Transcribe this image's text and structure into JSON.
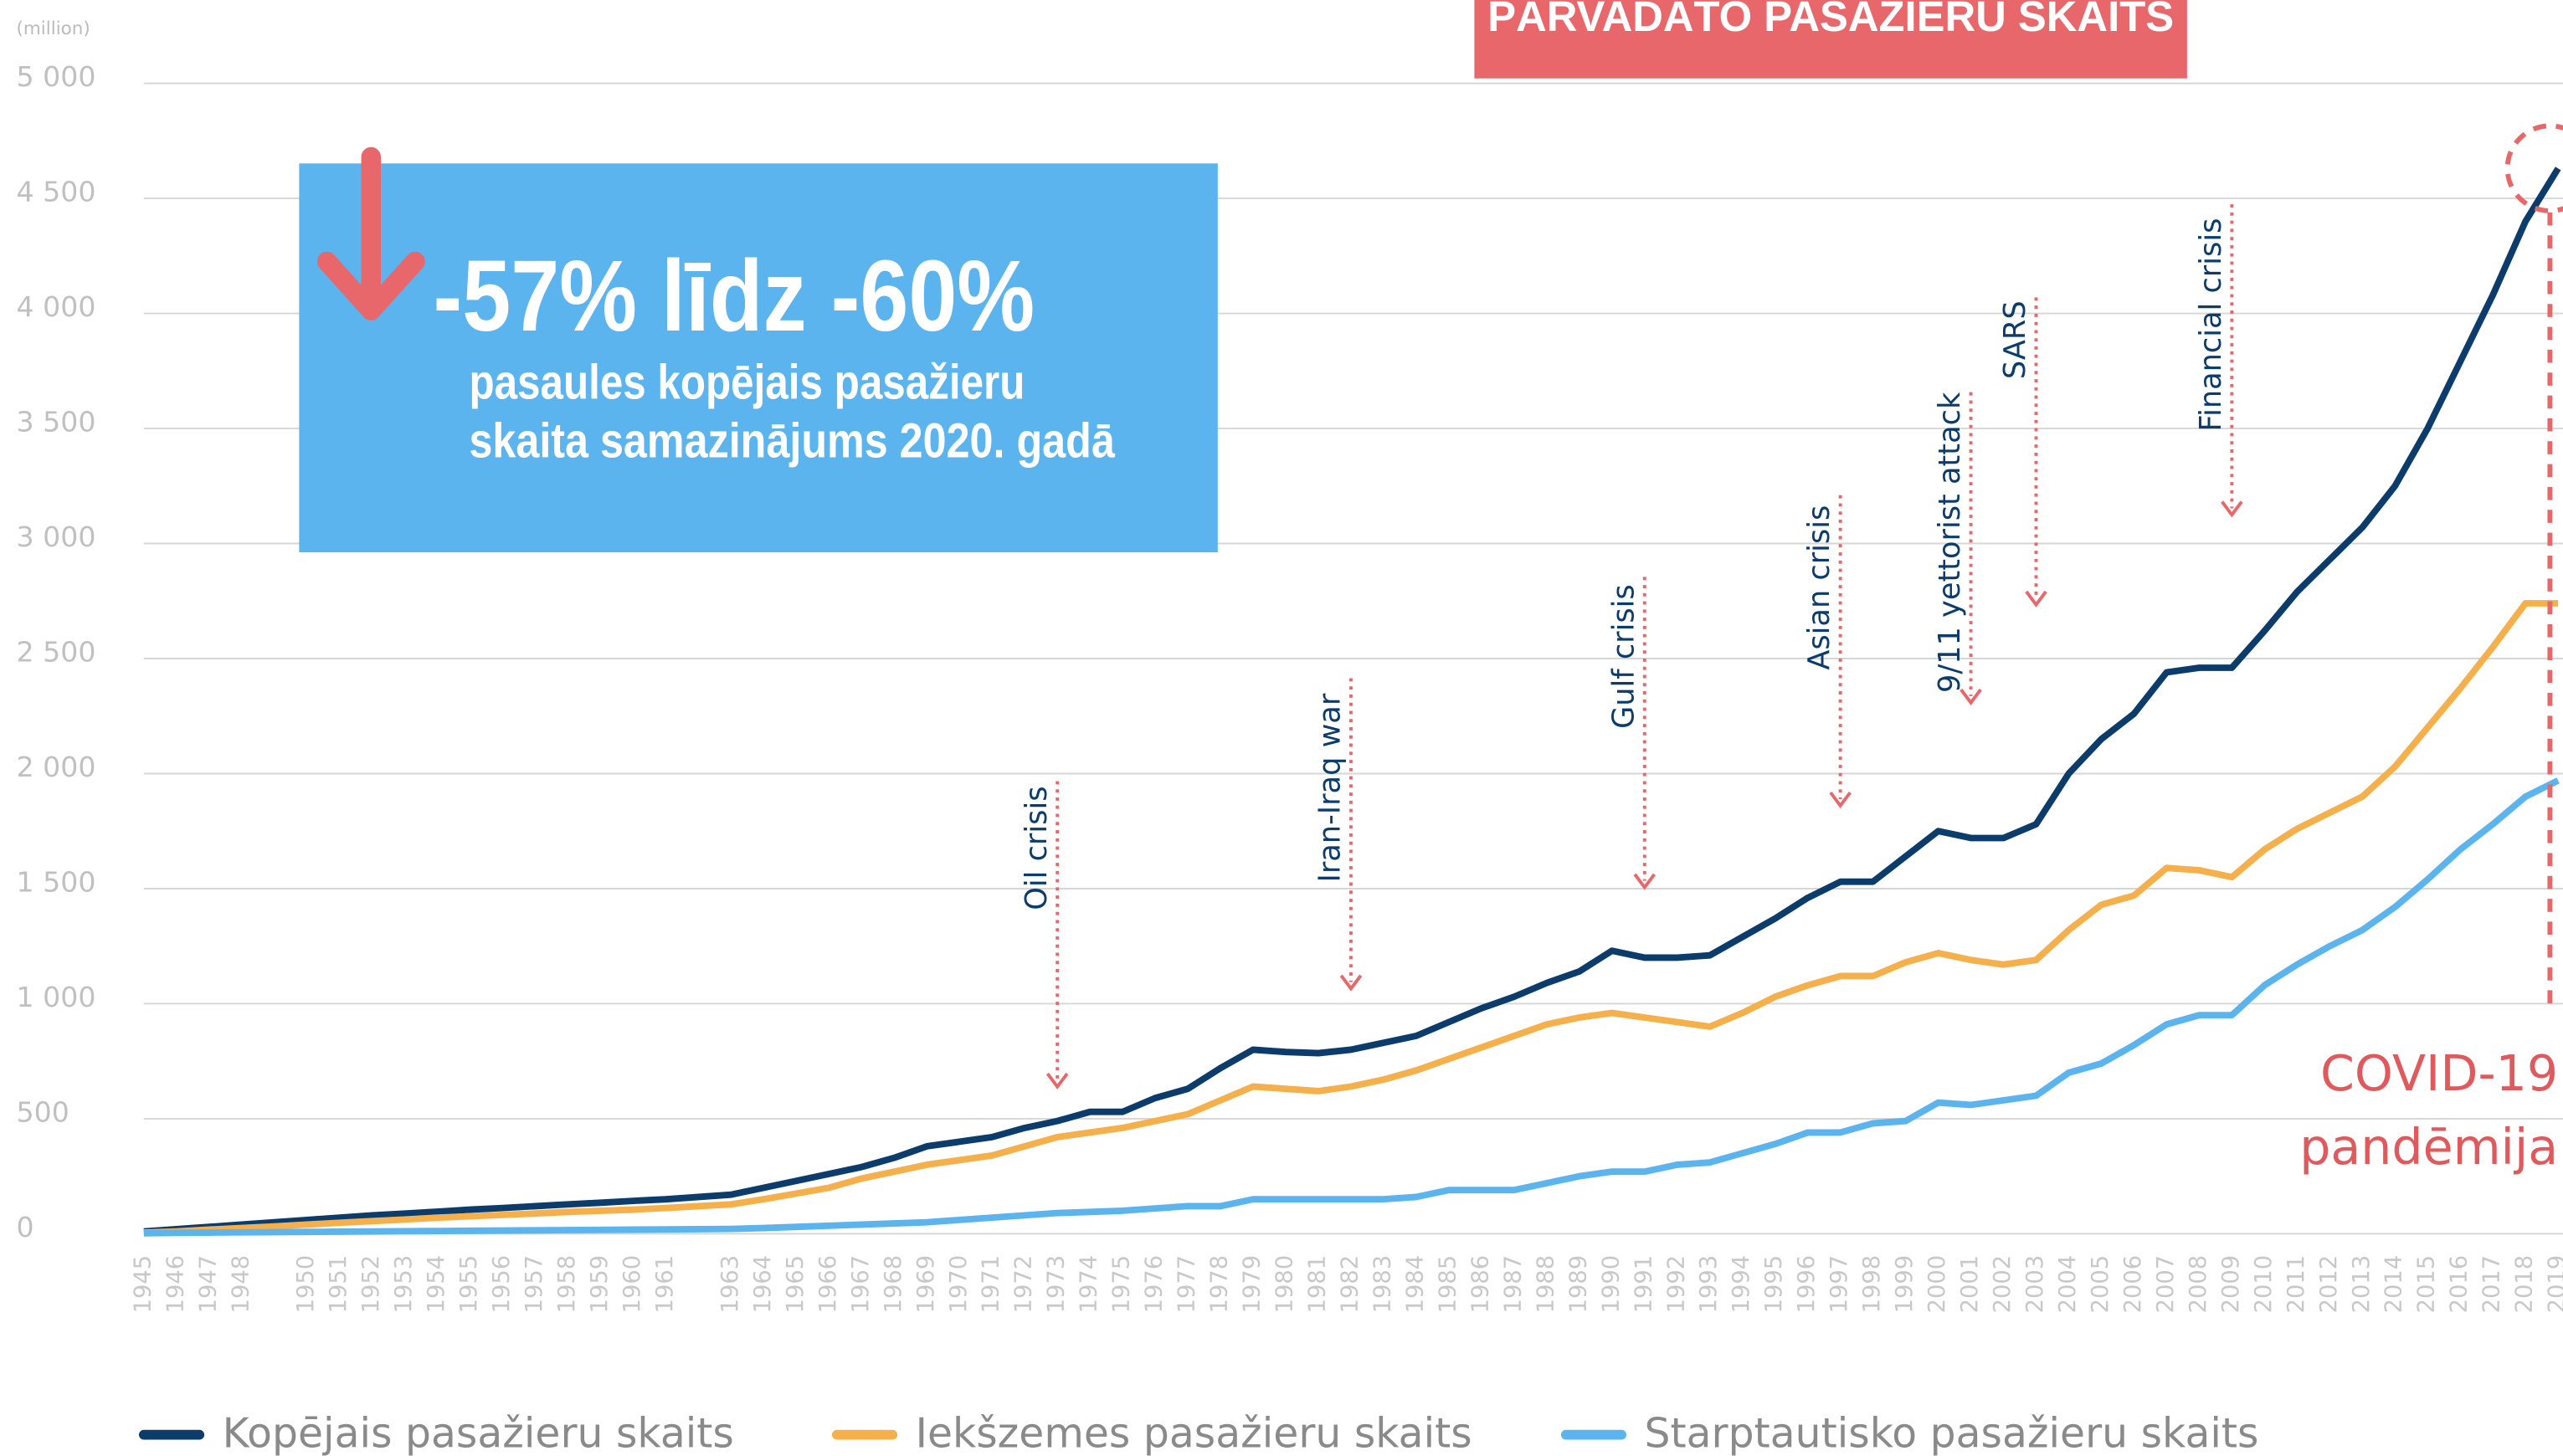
{
  "chart_data": {
    "type": "line",
    "title": "PĀRVADĀTO PASAŽIERU SKAITS",
    "y_unit_label": "(million)",
    "callout": {
      "headline": "-57% līdz -60%",
      "line1": "pasaules kopējais pasažieru",
      "line2": "skaita samazinājums 2020. gadā"
    },
    "categories": [
      "1945",
      "1946",
      "1947",
      "1948",
      null,
      "1950",
      "1951",
      "1952",
      "1953",
      "1954",
      "1955",
      "1956",
      "1957",
      "1958",
      "1959",
      "1960",
      "1961",
      null,
      "1963",
      "1964",
      "1965",
      "1966",
      "1967",
      "1968",
      "1969",
      "1970",
      "1971",
      "1972",
      "1973",
      "1974",
      "1975",
      "1976",
      "1977",
      "1978",
      "1979",
      "1980",
      "1981",
      "1982",
      "1983",
      "1984",
      "1985",
      "1986",
      "1987",
      "1988",
      "1989",
      "1990",
      "1991",
      "1992",
      "1993",
      "1994",
      "1995",
      "1996",
      "1997",
      "1998",
      "1999",
      "2000",
      "2001",
      "2002",
      "2003",
      "2004",
      "2005",
      "2006",
      "2007",
      "2008",
      "2009",
      "2010",
      "2011",
      "2012",
      "2013",
      "2014",
      "2015",
      "2016",
      "2017",
      "2018",
      "2019"
    ],
    "series": [
      {
        "name": "Kopējais pasažieru skaits",
        "color": "#0b3c6b",
        "values": [
          10,
          20,
          30,
          40,
          50,
          60,
          70,
          80,
          88,
          96,
          105,
          112,
          120,
          128,
          135,
          143,
          150,
          160,
          170,
          200,
          230,
          260,
          290,
          330,
          380,
          400,
          420,
          460,
          490,
          530,
          530,
          590,
          630,
          720,
          800,
          790,
          785,
          800,
          830,
          860,
          920,
          980,
          1030,
          1090,
          1140,
          1230,
          1200,
          1200,
          1210,
          1290,
          1370,
          1460,
          1530,
          1530,
          1640,
          1750,
          1720,
          1720,
          1780,
          2000,
          2150,
          2260,
          2440,
          2460,
          2460,
          2620,
          2790,
          2930,
          3070,
          3250,
          3500,
          3790,
          4080,
          4400,
          4630
        ]
      },
      {
        "name": "Iekšzemes pasažieru skaits",
        "color": "#f5b04b",
        "values": [
          5,
          10,
          18,
          25,
          32,
          40,
          48,
          55,
          62,
          70,
          76,
          82,
          88,
          95,
          100,
          105,
          112,
          120,
          128,
          150,
          175,
          200,
          240,
          270,
          300,
          320,
          340,
          380,
          420,
          440,
          460,
          490,
          520,
          580,
          640,
          630,
          620,
          640,
          670,
          710,
          760,
          810,
          860,
          910,
          940,
          960,
          940,
          920,
          900,
          960,
          1030,
          1080,
          1120,
          1120,
          1180,
          1220,
          1190,
          1170,
          1190,
          1320,
          1430,
          1470,
          1590,
          1580,
          1550,
          1670,
          1760,
          1830,
          1900,
          2030,
          2200,
          2370,
          2550,
          2740,
          2740
        ]
      },
      {
        "name": "Starptautisko pasažieru skaits",
        "color": "#5bb4ee",
        "values": [
          2,
          4,
          5,
          6,
          7,
          8,
          9,
          10,
          11,
          12,
          13,
          14,
          15,
          16,
          17,
          18,
          19,
          20,
          21,
          25,
          30,
          35,
          40,
          45,
          50,
          60,
          70,
          80,
          90,
          95,
          100,
          110,
          120,
          120,
          150,
          150,
          150,
          150,
          150,
          160,
          190,
          190,
          190,
          220,
          250,
          270,
          270,
          300,
          310,
          350,
          390,
          440,
          440,
          480,
          490,
          570,
          560,
          580,
          600,
          700,
          740,
          820,
          910,
          950,
          950,
          1080,
          1170,
          1250,
          1320,
          1420,
          1540,
          1670,
          1780,
          1900,
          1970
        ]
      }
    ],
    "ylim": [
      0,
      5000
    ],
    "yticks": [
      0,
      500,
      {
        "value": 1000,
        "label": "1 000"
      },
      {
        "value": 1500,
        "label": "1 500"
      },
      {
        "value": 2000,
        "label": "2 000"
      },
      {
        "value": 2500,
        "label": "2 500"
      },
      {
        "value": 3000,
        "label": "3 000"
      },
      {
        "value": 3500,
        "label": "3 500"
      },
      {
        "value": 4000,
        "label": "4 000"
      },
      {
        "value": 4500,
        "label": "4 500"
      },
      {
        "value": 5000,
        "label": "5 000"
      }
    ],
    "grid": true,
    "legend": "bottom",
    "annotations": [
      {
        "text": "Oil crisis",
        "at": "1973"
      },
      {
        "text": "Iran-Iraq war",
        "at": "1982"
      },
      {
        "text": "Gulf crisis",
        "at": "1991"
      },
      {
        "text": "Asian crisis",
        "at": "1997"
      },
      {
        "text": "9/11 yettorist attack",
        "at": "2001"
      },
      {
        "text": "SARS",
        "at": "2003"
      },
      {
        "text": "Financial crisis",
        "at": "2009"
      }
    ],
    "covid": {
      "line1": "COVID-19",
      "line2": "pandēmija"
    }
  }
}
